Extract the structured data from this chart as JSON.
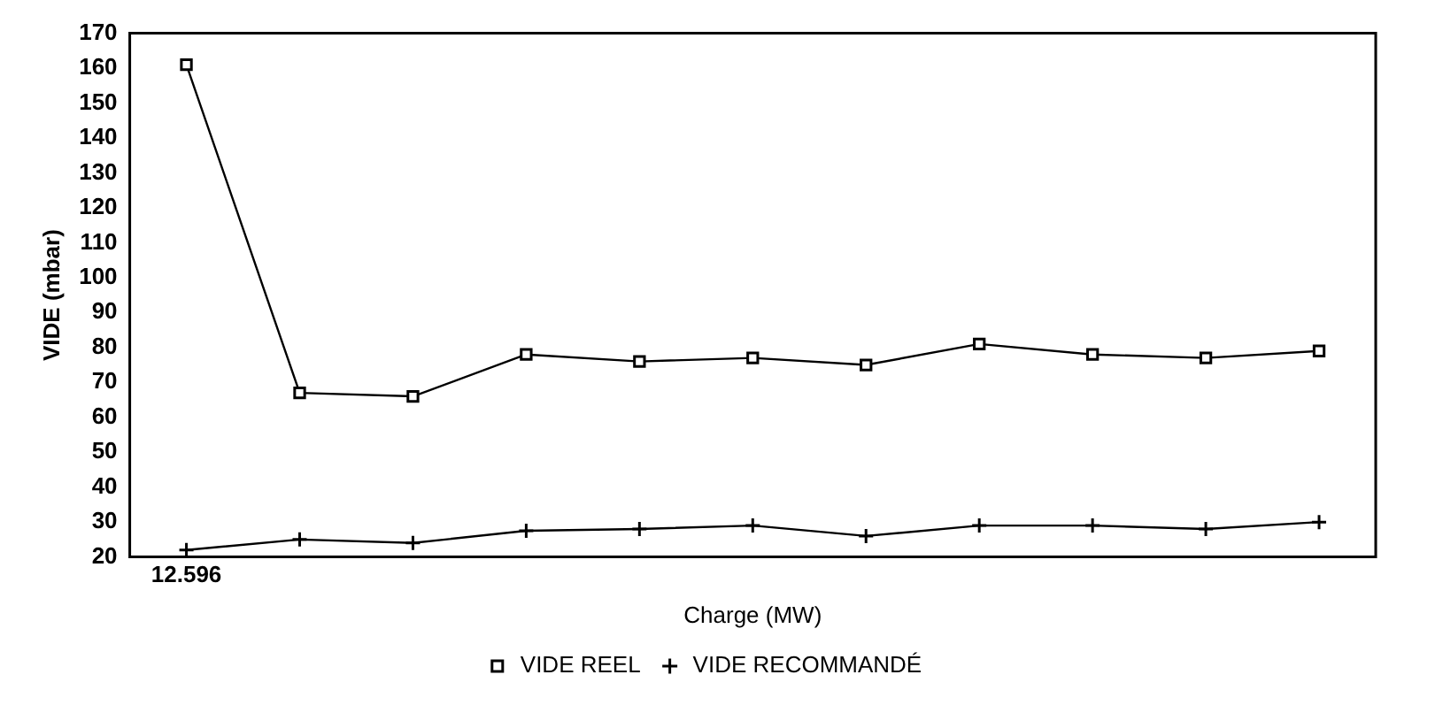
{
  "chart_data": {
    "type": "line",
    "xlabel": "Charge (MW)",
    "ylabel": "VIDE (mbar)",
    "categories": [
      "12.596",
      null,
      null,
      null,
      null,
      null,
      null,
      null,
      null,
      null,
      null
    ],
    "series": [
      {
        "name": "VIDE REEL",
        "color": "#000000",
        "marker": "square",
        "values": [
          161,
          67,
          66,
          78,
          76,
          77,
          75,
          81,
          78,
          77,
          79
        ]
      },
      {
        "name": "VIDE RECOMMANDÉ",
        "color": "#000000",
        "marker": "cross",
        "values": [
          22,
          25,
          24,
          27.5,
          28,
          29,
          26,
          29,
          29,
          28,
          30
        ]
      }
    ],
    "ylim": [
      20,
      170
    ],
    "yticks": [
      20,
      30,
      40,
      50,
      60,
      70,
      80,
      90,
      100,
      110,
      120,
      130,
      140,
      150,
      160,
      170
    ],
    "grid": false,
    "legend": "bottom",
    "line_style": "solid"
  }
}
